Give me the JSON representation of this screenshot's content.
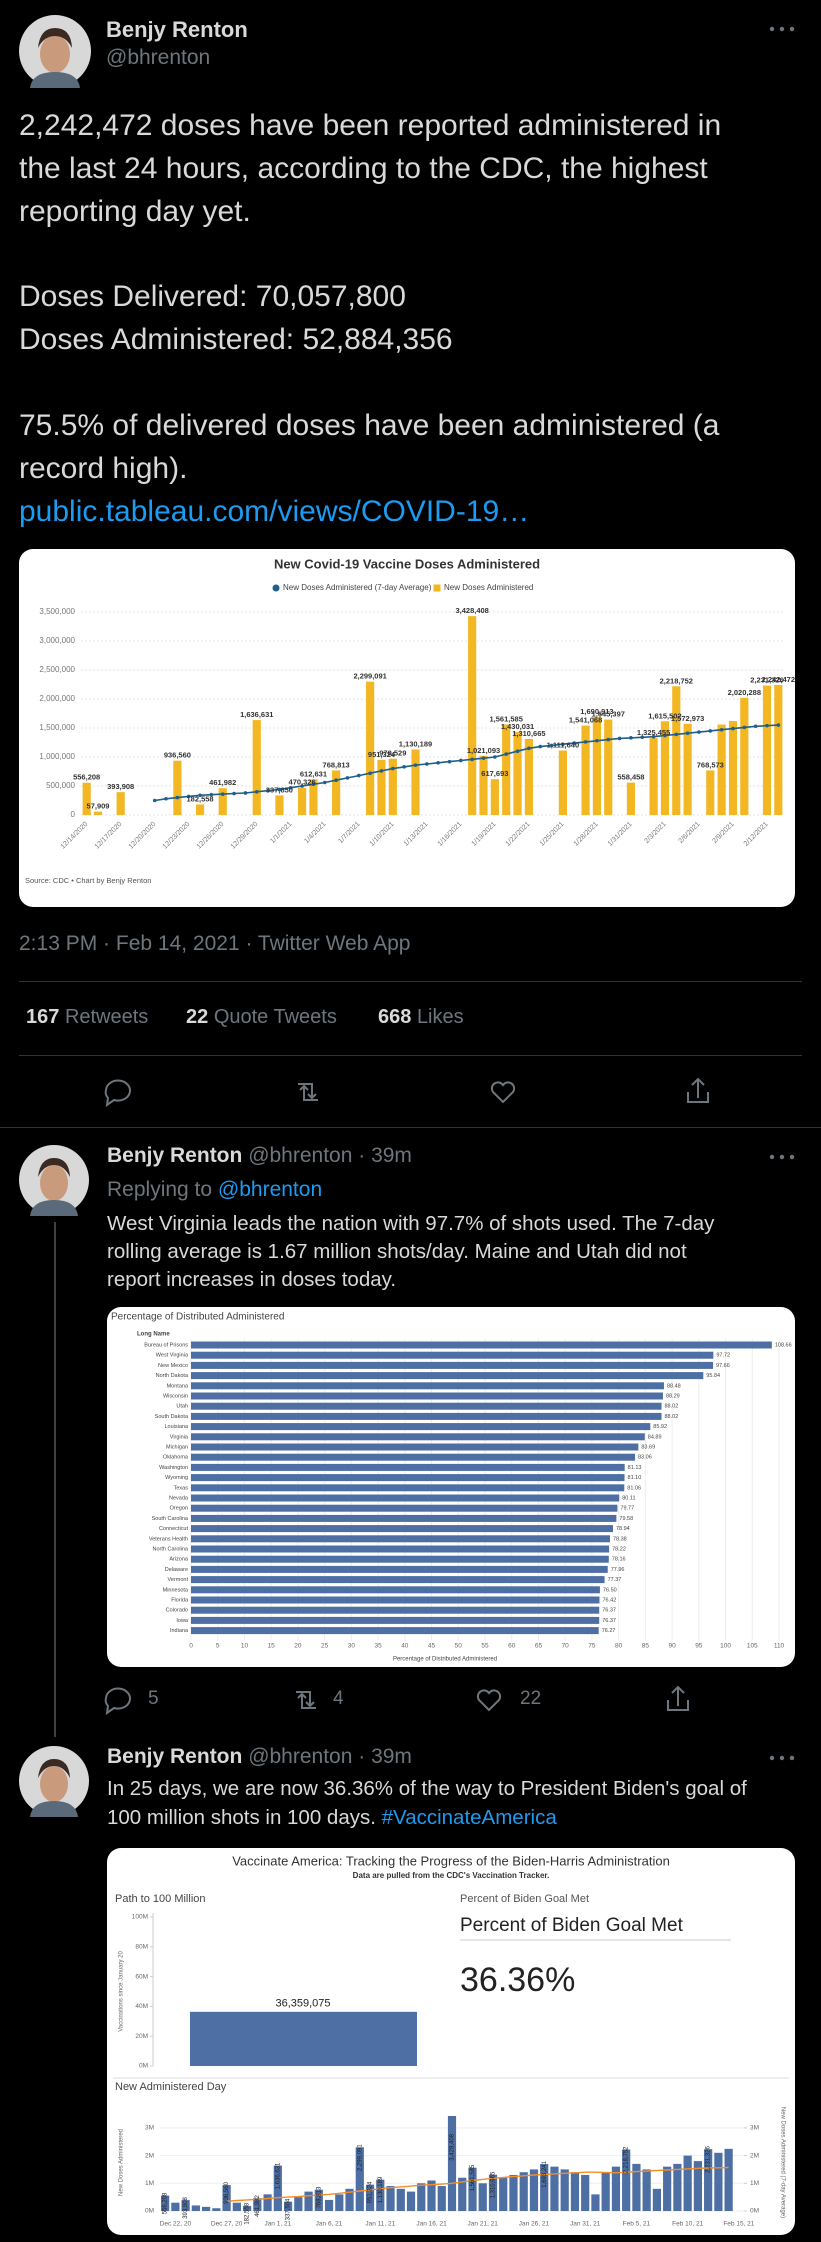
{
  "tweet": {
    "name": "Benjy Renton",
    "handle": "@bhrenton",
    "text_lines": [
      "2,242,472 doses have been reported administered in",
      "the last 24 hours, according to the CDC, the highest",
      "reporting day yet.",
      "Doses Delivered: 70,057,800",
      "Doses Administered: 52,884,356",
      "75.5% of delivered doses have been administered (a",
      "record high)."
    ],
    "link": "public.tableau.com/views/COVID-19…",
    "timestamp": "2:13 PM · Feb 14, 2021 · Twitter Web App",
    "stats": [
      {
        "count": 167,
        "label": "Retweets"
      },
      {
        "count": 22,
        "label": "Quote Tweets"
      },
      {
        "count": 668,
        "label": "Likes"
      }
    ]
  },
  "replies": [
    {
      "name": "Benjy Renton",
      "handle_time": "@bhrenton · 39m",
      "replying_label": "Replying to",
      "replying_to": "@bhrenton",
      "text_lines": [
        "West Virginia leads the nation with 97.7% of shots used. The 7-day",
        "rolling average is 1.67 million shots/day. Maine and Utah did not",
        "report increases in doses today."
      ],
      "replies": 5,
      "retweets": 4,
      "likes": 22
    },
    {
      "name": "Benjy Renton",
      "handle_time": "@bhrenton · 39m",
      "text_lines": [
        "In 25 days, we are now 36.36% of the way to President Biden's goal of",
        "100 million shots in 100 days."
      ],
      "hashtag": "#VaccinateAmerica"
    }
  ],
  "dashboard": {
    "title": "Vaccinate America: Tracking the Progress of the Biden-Harris Administration",
    "subtitle": "Data are pulled from the CDC's Vaccination Tracker.",
    "kpi_label": "Percent of Biden Goal Met",
    "kpi_title": "Percent of Biden Goal Met",
    "kpi_value": "36.36%"
  },
  "chart_data": [
    {
      "type": "bar",
      "title": "New Covid-19 Vaccine Doses Administered",
      "source": "Source: CDC • Chart by Benjy Renton",
      "categories": [
        "12/14/2020",
        null,
        null,
        "12/17/2020",
        null,
        null,
        "12/20/2020",
        null,
        null,
        "12/23/2020",
        null,
        null,
        "12/26/2020",
        null,
        null,
        "12/29/2020",
        null,
        null,
        "1/1/2021",
        null,
        null,
        "1/4/2021",
        null,
        null,
        "1/7/2021",
        null,
        null,
        "1/10/2021",
        null,
        null,
        "1/13/2021",
        null,
        null,
        "1/16/2021",
        null,
        null,
        "1/19/2021",
        null,
        null,
        "1/22/2021",
        null,
        null,
        "1/25/2021",
        null,
        null,
        "1/28/2021",
        null,
        null,
        "1/31/2021",
        null,
        null,
        "2/3/2021",
        null,
        null,
        "2/6/2021",
        null,
        null,
        "2/9/2021",
        null,
        null,
        "2/12/2021",
        null
      ],
      "series": [
        {
          "name": "New Doses Administered (7-day Average)",
          "type": "line",
          "color": "#1f5f8b",
          "values": [
            null,
            null,
            null,
            null,
            null,
            null,
            250000,
            280000,
            300000,
            320000,
            340000,
            350000,
            360000,
            370000,
            380000,
            400000,
            420000,
            440000,
            470000,
            500000,
            530000,
            560000,
            600000,
            640000,
            680000,
            720000,
            760000,
            800000,
            830000,
            860000,
            880000,
            900000,
            920000,
            940000,
            960000,
            980000,
            1000000,
            1050000,
            1100000,
            1150000,
            1180000,
            1200000,
            1220000,
            1240000,
            1260000,
            1280000,
            1300000,
            1320000,
            1330000,
            1340000,
            1350000,
            1370000,
            1390000,
            1410000,
            1430000,
            1450000,
            1470000,
            1490000,
            1510000,
            1530000,
            1540000,
            1550000
          ]
        },
        {
          "name": "New Doses Administered",
          "type": "bar",
          "color": "#f2b722",
          "values": [
            556208,
            57909,
            null,
            393908,
            null,
            null,
            null,
            null,
            936560,
            null,
            182558,
            null,
            461982,
            null,
            null,
            1636631,
            null,
            337850,
            null,
            470326,
            612631,
            null,
            768813,
            null,
            null,
            2299091,
            951324,
            970529,
            null,
            1130189,
            null,
            null,
            null,
            null,
            3428408,
            1021093,
            617693,
            1561585,
            1430031,
            1310665,
            null,
            null,
            1111640,
            null,
            1541068,
            1690913,
            1645397,
            null,
            558458,
            null,
            1325455,
            1615502,
            2218752,
            1572973,
            null,
            768573,
            1560000,
            1620000,
            2020288,
            null,
            2231326,
            2242472
          ],
          "value_labels": [
            "556,208",
            "57,909",
            null,
            "393,908",
            null,
            null,
            null,
            null,
            "936,560",
            null,
            "182,558",
            null,
            "461,982",
            null,
            null,
            "1,636,631",
            null,
            "337,850",
            null,
            "470,326",
            "612,631",
            null,
            "768,813",
            null,
            null,
            "2,299,091",
            "951,324",
            "970,529",
            null,
            "1,130,189",
            null,
            null,
            null,
            null,
            "3,428,408",
            "1,021,093",
            "617,693",
            "1,561,585",
            "1,430,031",
            "1,310,665",
            null,
            null,
            "1,111,640",
            null,
            "1,541,068",
            "1,690,913",
            "1,645,397",
            null,
            "558,458",
            null,
            "1,325,455",
            "1,615,502",
            "2,218,752",
            "1,572,973",
            null,
            "768,573",
            null,
            null,
            "2,020,288",
            null,
            "2,231,326",
            "2,242,472"
          ]
        }
      ],
      "ylim": [
        0,
        3500000
      ],
      "yticks": [
        0,
        {
          "value": 500000,
          "label": "500,000"
        },
        {
          "value": 1000000,
          "label": "1,000,000"
        },
        {
          "value": 1500000,
          "label": "1,500,000"
        },
        {
          "value": 2000000,
          "label": "2,000,000"
        },
        {
          "value": 2500000,
          "label": "2,500,000"
        },
        {
          "value": 3000000,
          "label": "3,000,000"
        },
        {
          "value": 3500000,
          "label": "3,500,000"
        }
      ],
      "grid": true
    },
    {
      "type": "hbar",
      "title": "Percentage of Distributed Administered",
      "category_header": "Long Name",
      "xlabel": "Percentage of Distributed Administered",
      "color": "#4e6fa3",
      "categories": [
        "Bureau of Prisons",
        "West Virginia",
        "New Mexico",
        "North Dakota",
        "Montana",
        "Wisconsin",
        "Utah",
        "South Dakota",
        "Louisiana",
        "Virginia",
        "Michigan",
        "Oklahoma",
        "Washington",
        "Wyoming",
        "Texas",
        "Nevada",
        "Oregon",
        "South Carolina",
        "Connecticut",
        "Veterans Health",
        "North Carolina",
        "Arizona",
        "Delaware",
        "Vermont",
        "Minnesota",
        "Florida",
        "Colorado",
        "Iowa",
        "Indiana"
      ],
      "values": [
        108.66,
        97.72,
        97.66,
        95.84,
        88.48,
        88.29,
        88.02,
        88.02,
        85.92,
        84.89,
        83.69,
        83.06,
        81.13,
        81.1,
        81.06,
        80.11,
        79.77,
        79.58,
        78.94,
        78.38,
        78.22,
        78.16,
        77.96,
        77.37,
        76.5,
        76.42,
        76.37,
        76.37,
        76.27
      ],
      "value_labels": [
        "108.66",
        "97.72",
        "97.66",
        "95.84",
        "88.48",
        "88.29",
        "88.02",
        "88.02",
        "85.92",
        "84.89",
        "83.69",
        "83.06",
        "81.13",
        "81.10",
        "81.06",
        "80.11",
        "79.77",
        "79.58",
        "78.94",
        "78.38",
        "78.22",
        "78.16",
        "77.96",
        "77.37",
        "76.50",
        "76.42",
        "76.37",
        "76.37",
        "76.27"
      ],
      "xlim": [
        0,
        110
      ],
      "xticks": [
        0,
        5,
        10,
        15,
        20,
        25,
        30,
        35,
        40,
        45,
        50,
        55,
        60,
        65,
        70,
        75,
        80,
        85,
        90,
        95,
        100,
        105,
        110
      ],
      "grid": true
    },
    {
      "type": "bar",
      "title": "Path to 100 Million",
      "ylabel": "Vaccinations since January 20",
      "color": "#4e6fa3",
      "values": [
        36359075
      ],
      "value_labels": [
        "36,359,075"
      ],
      "ylim": [
        0,
        100000000
      ],
      "yticks": [
        {
          "value": 0,
          "label": "0M"
        },
        {
          "value": 20000000,
          "label": "20M"
        },
        {
          "value": 40000000,
          "label": "40M"
        },
        {
          "value": 60000000,
          "label": "60M"
        },
        {
          "value": 80000000,
          "label": "80M"
        },
        {
          "value": 100000000,
          "label": "100M"
        }
      ]
    },
    {
      "type": "bar",
      "title": "New Administered Day",
      "ylabel": "New Doses Administered",
      "y2label": "New Doses Administered (7-day Average)",
      "categories": [
        null,
        "Dec 22, 20",
        null,
        null,
        null,
        null,
        "Dec 27, 20",
        null,
        null,
        null,
        null,
        "Jan 1, 21",
        null,
        null,
        null,
        null,
        "Jan 6, 21",
        null,
        null,
        null,
        null,
        "Jan 11, 21",
        null,
        null,
        null,
        null,
        "Jan 16, 21",
        null,
        null,
        null,
        null,
        "Jan 21, 21",
        null,
        null,
        null,
        null,
        "Jan 26, 21",
        null,
        null,
        null,
        null,
        "Jan 31, 21",
        null,
        null,
        null,
        null,
        "Feb 5, 21",
        null,
        null,
        null,
        null,
        "Feb 10, 21",
        null,
        null,
        null,
        null,
        "Feb 15, 21"
      ],
      "series": [
        {
          "type": "bar",
          "color": "#4e6fa3",
          "values": [
            556208,
            300000,
            393908,
            200000,
            150000,
            100000,
            936560,
            300000,
            182558,
            461982,
            600000,
            1636631,
            337504,
            500000,
            700000,
            768813,
            400000,
            600000,
            800000,
            2299091,
            951324,
            1130189,
            900000,
            800000,
            700000,
            1000000,
            1100000,
            900000,
            3428408,
            1200000,
            1561585,
            1000000,
            1310665,
            1200000,
            1300000,
            1400000,
            1500000,
            1693241,
            1600000,
            1500000,
            1400000,
            1300000,
            600000,
            1400000,
            1600000,
            2218752,
            1700000,
            1500000,
            800000,
            1600000,
            1700000,
            2000000,
            1800000,
            2231326,
            2100000,
            2242472,
            null
          ],
          "value_labels": [
            "556,208",
            null,
            "393,908",
            null,
            null,
            null,
            "936,560",
            null,
            "182,558",
            "461,982",
            null,
            "1,636,631",
            "337,504",
            null,
            null,
            "768,813",
            null,
            null,
            null,
            "2,299,091",
            "951,324",
            "1,130,189",
            null,
            null,
            null,
            null,
            null,
            null,
            "3,428,408",
            null,
            "1,561,585",
            null,
            "1,310,665",
            null,
            null,
            null,
            null,
            "1,693,241",
            null,
            null,
            null,
            null,
            null,
            null,
            null,
            "2,218,752",
            null,
            null,
            null,
            null,
            null,
            null,
            null,
            "2,231,326",
            null,
            null,
            null
          ]
        },
        {
          "type": "line",
          "color": "#f28e2b",
          "axis": "y2",
          "values": [
            null,
            null,
            null,
            null,
            null,
            null,
            350000,
            380000,
            400000,
            420000,
            450000,
            480000,
            500000,
            520000,
            550000,
            580000,
            600000,
            640000,
            680000,
            720000,
            760000,
            800000,
            840000,
            870000,
            900000,
            930000,
            950000,
            970000,
            1000000,
            1050000,
            1100000,
            1140000,
            1180000,
            1210000,
            1240000,
            1270000,
            1300000,
            1320000,
            1340000,
            1360000,
            1380000,
            1400000,
            1400000,
            1390000,
            1380000,
            1400000,
            1420000,
            1440000,
            1460000,
            1480000,
            1500000,
            1520000,
            1540000,
            1550000,
            1560000,
            1570000,
            null
          ]
        }
      ],
      "ylim": [
        0,
        3500000
      ],
      "yticks": [
        {
          "value": 0,
          "label": "0M"
        },
        {
          "value": 1000000,
          "label": "1M"
        },
        {
          "value": 2000000,
          "label": "2M"
        },
        {
          "value": 3000000,
          "label": "3M"
        }
      ],
      "y2lim": [
        0,
        3500000
      ],
      "y2ticks": [
        {
          "value": 0,
          "label": "0M"
        },
        {
          "value": 1000000,
          "label": "1M"
        },
        {
          "value": 2000000,
          "label": "2M"
        },
        {
          "value": 3000000,
          "label": "3M"
        }
      ]
    }
  ]
}
